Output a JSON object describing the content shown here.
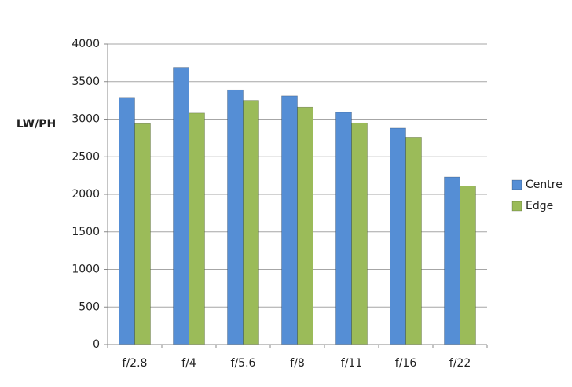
{
  "chart_data": {
    "type": "bar",
    "y_label": "LW/PH",
    "categories": [
      "f/2.8",
      "f/4",
      "f/5.6",
      "f/8",
      "f/11",
      "f/16",
      "f/22"
    ],
    "series": [
      {
        "name": "Centre",
        "color": "#558ed5",
        "values": [
          3290,
          3690,
          3390,
          3310,
          3090,
          2880,
          2230
        ]
      },
      {
        "name": "Edge",
        "color": "#9bbb59",
        "values": [
          2940,
          3080,
          3250,
          3160,
          2950,
          2760,
          2110
        ]
      }
    ],
    "ylim": [
      0,
      4000
    ],
    "yticks": [
      0,
      500,
      1000,
      1500,
      2000,
      2500,
      3000,
      3500,
      4000
    ],
    "grid": true,
    "legend": "right"
  }
}
